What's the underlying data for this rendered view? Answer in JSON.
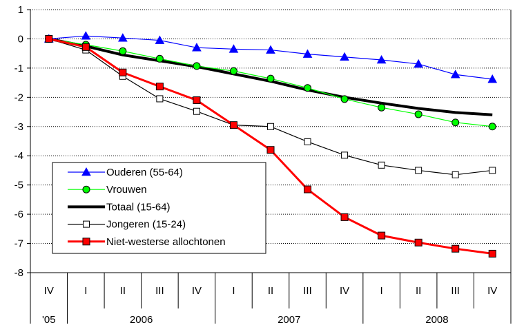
{
  "chart_data": {
    "type": "line",
    "title": "",
    "xlabel": "",
    "ylabel": "",
    "ylim": [
      -8,
      1
    ],
    "yticks": [
      "1",
      "0",
      "-1",
      "-2",
      "-3",
      "-4",
      "-5",
      "-6",
      "-7",
      "-8"
    ],
    "grid": "horizontal dotted",
    "legend_position": "bottom-left",
    "x": [
      "IV",
      "I",
      "II",
      "III",
      "IV",
      "I",
      "II",
      "III",
      "IV",
      "I",
      "II",
      "III",
      "IV"
    ],
    "year_groups": [
      {
        "label": "'05",
        "span": 1
      },
      {
        "label": "2006",
        "span": 4
      },
      {
        "label": "2007",
        "span": 4
      },
      {
        "label": "2008",
        "span": 4
      }
    ],
    "series": [
      {
        "name": "Ouderen (55-64)",
        "color": "#0000ff",
        "marker": "triangle",
        "values": [
          0,
          0.1,
          0.03,
          -0.05,
          -0.3,
          -0.35,
          -0.38,
          -0.52,
          -0.62,
          -0.72,
          -0.86,
          -1.22,
          -1.38
        ]
      },
      {
        "name": "Vrouwen",
        "color": "#00ff00",
        "marker": "circle",
        "values": [
          0,
          -0.2,
          -0.42,
          -0.68,
          -0.93,
          -1.1,
          -1.36,
          -1.68,
          -2.06,
          -2.35,
          -2.58,
          -2.86,
          -3.0
        ]
      },
      {
        "name": "Totaal (15-64)",
        "color": "#000000",
        "marker": "none",
        "values": [
          0,
          -0.25,
          -0.55,
          -0.75,
          -0.95,
          -1.2,
          -1.45,
          -1.75,
          -2.0,
          -2.2,
          -2.38,
          -2.52,
          -2.6
        ]
      },
      {
        "name": "Jongeren (15-24)",
        "color": "#000000",
        "marker": "square-open",
        "values": [
          0,
          -0.38,
          -1.28,
          -2.05,
          -2.48,
          -2.95,
          -3.0,
          -3.52,
          -3.98,
          -4.32,
          -4.5,
          -4.65,
          -4.5
        ]
      },
      {
        "name": "Niet-westerse allochtonen",
        "color": "#ff0000",
        "marker": "square-filled",
        "values": [
          0,
          -0.28,
          -1.15,
          -1.63,
          -2.1,
          -2.95,
          -3.8,
          -5.15,
          -6.1,
          -6.73,
          -6.97,
          -7.18,
          -7.35
        ]
      }
    ]
  }
}
